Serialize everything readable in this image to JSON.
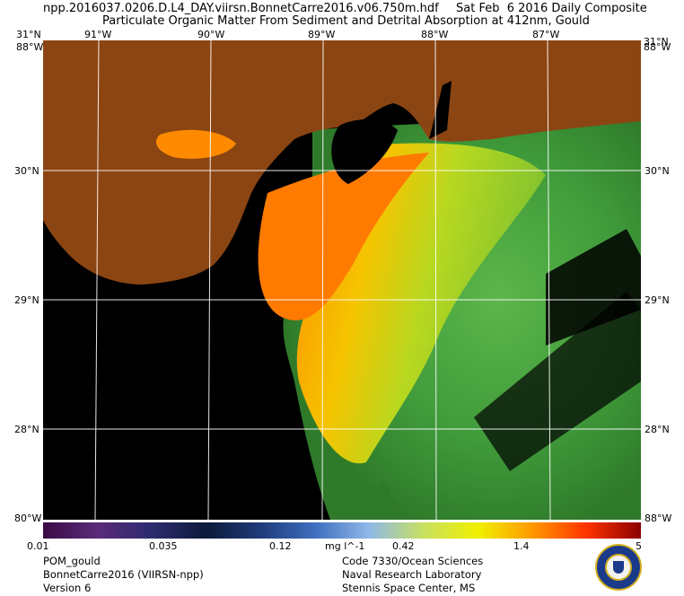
{
  "header": {
    "filename": "npp.2016037.0206.D.L4_DAY.viirsn.BonnetCarre2016.v06.750m.hdf",
    "date": "Sat Feb  6 2016 Daily Composite",
    "product": "Particulate Organic Matter From Sediment and Detrital Absorption at 412nm, Gould"
  },
  "map": {
    "lon_labels": [
      "91°W",
      "90°W",
      "89°W",
      "88°W",
      "87°W"
    ],
    "lat_labels": [
      "30°N",
      "29°N",
      "28°N"
    ],
    "corner_top_left": "31°N",
    "corner_top_right": "31°N",
    "corner_top_left_lon": "88°W",
    "corner_top_right_lon": "88°W",
    "corner_bottom_left": "80°W",
    "corner_bottom_right": "88°W",
    "colors": {
      "land": "#8b4513",
      "nodata": "#000000",
      "grid": "#ffffff"
    }
  },
  "colorbar": {
    "ticks": [
      "0.01",
      "0.035",
      "0.12",
      "0.42",
      "1.4",
      "5"
    ],
    "unit": "mg l^-1",
    "colors": [
      "#3b0a45",
      "#5b2b7a",
      "#2b2b6e",
      "#0d1a3a",
      "#1f3b7a",
      "#3f6fbf",
      "#8fb8e8",
      "#c8e060",
      "#f0f000",
      "#ff9900",
      "#ff3300",
      "#8b0000"
    ]
  },
  "footer": {
    "left": [
      "POM_gould",
      "BonnetCarre2016 (VIIRSN-npp)",
      "Version 6"
    ],
    "right": [
      "Code 7330/Ocean Sciences",
      "Naval Research Laboratory",
      "Stennis Space Center, MS"
    ]
  },
  "logo": {
    "name": "nrl-seal-icon"
  }
}
